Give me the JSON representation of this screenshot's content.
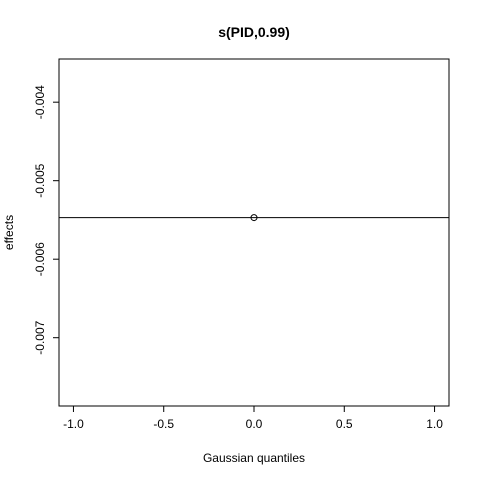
{
  "chart_data": {
    "type": "scatter",
    "title": "s(PID,0.99)",
    "xlabel": "Gaussian quantiles",
    "ylabel": "effects",
    "xlim": [
      -1.08,
      1.08
    ],
    "ylim": [
      -0.00787,
      -0.00345
    ],
    "x_ticks": [
      -1.0,
      -0.5,
      0.0,
      0.5,
      1.0
    ],
    "x_tick_labels": [
      "-1.0",
      "-0.5",
      "0.0",
      "0.5",
      "1.0"
    ],
    "y_ticks": [
      -0.004,
      -0.005,
      -0.006,
      -0.007
    ],
    "y_tick_labels": [
      "-0.004",
      "-0.005",
      "-0.006",
      "-0.007"
    ],
    "points": [
      {
        "x": 0.0,
        "y": -0.00547
      }
    ],
    "reference_line": {
      "y": -0.00547
    },
    "grid": false,
    "legend": "none"
  }
}
